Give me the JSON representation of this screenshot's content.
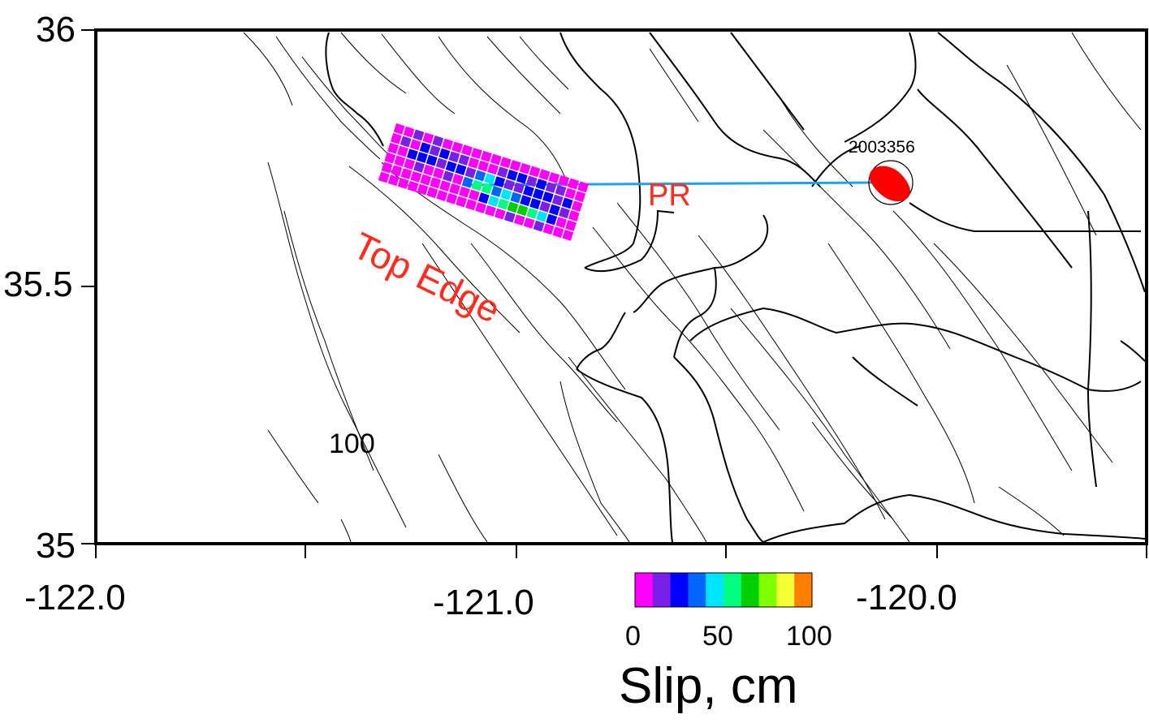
{
  "map": {
    "y_axis_ticks": [
      "36",
      "35.5",
      "35"
    ],
    "x_axis_ticks": [
      "-122.0",
      "-121.0",
      "-120.0"
    ],
    "station_label": "2003356",
    "profile_label": "PR",
    "fault_edge_label": "Top Edge",
    "contour_label": "100",
    "colors": {
      "profile_line": "#1aa3ee",
      "epicenter_fill": "#ff0000",
      "label_text": "#ff2a1a"
    }
  },
  "colorbar": {
    "title": "Slip, cm",
    "ticks": [
      "0",
      "50",
      "100"
    ],
    "range": [
      0,
      100
    ],
    "colors": [
      "#ff00ff",
      "#7a1fe8",
      "#0000ff",
      "#0066ff",
      "#00e5ff",
      "#00ff80",
      "#00d000",
      "#80ff00",
      "#f4ff33",
      "#ff8000"
    ]
  },
  "slip_patch": {
    "columns": 20,
    "rows": 6,
    "values": [
      [
        0,
        0,
        12,
        0,
        12,
        0,
        0,
        0,
        0,
        0,
        0,
        0,
        0,
        0,
        0,
        0,
        0,
        0,
        0,
        0
      ],
      [
        0,
        12,
        0,
        25,
        12,
        25,
        12,
        12,
        0,
        0,
        0,
        12,
        25,
        25,
        12,
        25,
        12,
        12,
        0,
        0
      ],
      [
        0,
        0,
        25,
        25,
        25,
        12,
        25,
        25,
        12,
        35,
        42,
        25,
        12,
        12,
        25,
        25,
        25,
        12,
        25,
        0
      ],
      [
        0,
        0,
        0,
        12,
        0,
        0,
        12,
        0,
        35,
        50,
        58,
        35,
        42,
        35,
        25,
        25,
        12,
        25,
        12,
        0
      ],
      [
        0,
        0,
        0,
        0,
        0,
        0,
        0,
        0,
        0,
        0,
        25,
        42,
        50,
        62,
        68,
        55,
        42,
        25,
        0,
        0
      ],
      [
        0,
        0,
        0,
        0,
        0,
        0,
        0,
        0,
        0,
        0,
        0,
        0,
        0,
        12,
        0,
        0,
        12,
        0,
        0,
        0
      ]
    ]
  }
}
